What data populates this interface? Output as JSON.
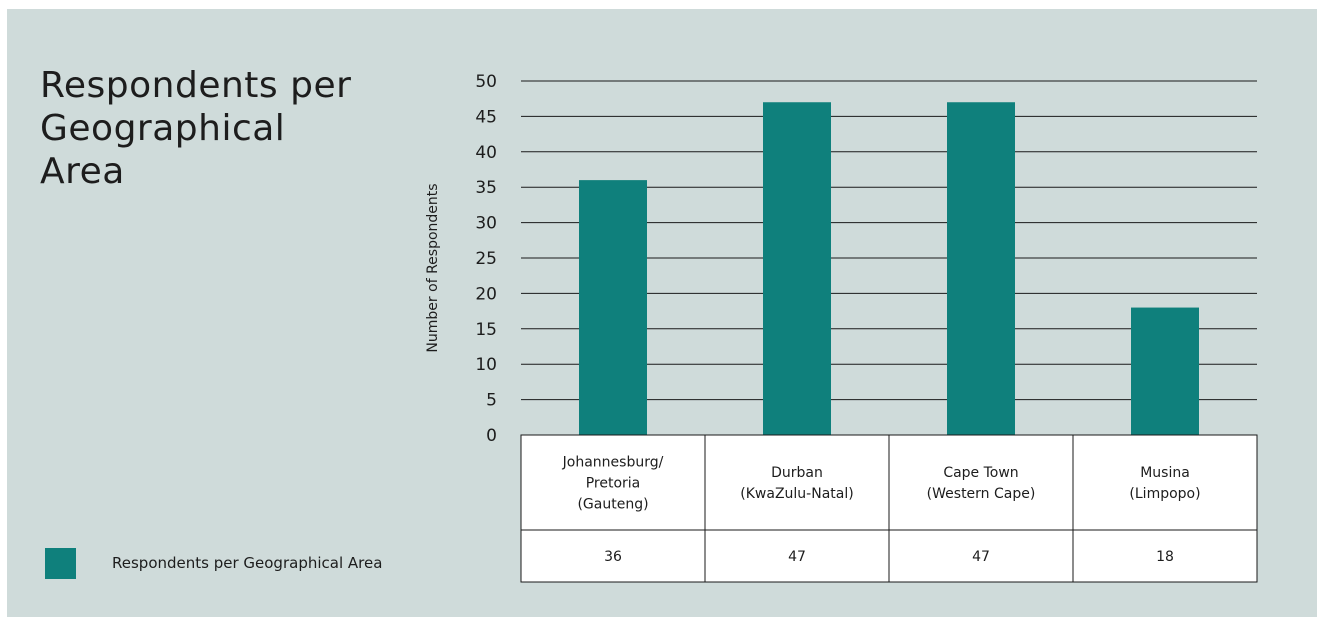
{
  "title_lines": [
    "Respondents per",
    "Geographical",
    "Area"
  ],
  "legend": {
    "label": "Respondents per Geographical Area",
    "color": "#0f807c"
  },
  "colors": {
    "background": "#cfdbda",
    "bar": "#0f807c",
    "gridline": "#1a1a1a",
    "table_fill": "#ffffff"
  },
  "chart_data": {
    "type": "bar",
    "title": "Respondents per Geographical Area",
    "ylabel": "Number of Respondents",
    "xlabel": "",
    "ylim": [
      0,
      50
    ],
    "yticks": [
      0,
      5,
      10,
      15,
      20,
      25,
      30,
      35,
      40,
      45,
      50
    ],
    "grid": true,
    "legend_placement": "bottom-left",
    "categories": [
      [
        "Johannesburg/",
        "Pretoria",
        "(Gauteng)"
      ],
      [
        "Durban",
        "(KwaZulu-Natal)"
      ],
      [
        "Cape Town",
        "(Western Cape)"
      ],
      [
        "Musina",
        "(Limpopo)"
      ]
    ],
    "series": [
      {
        "name": "Respondents per Geographical Area",
        "values": [
          36,
          47,
          47,
          18
        ]
      }
    ],
    "table_values": [
      "36",
      "47",
      "47",
      "18"
    ]
  }
}
